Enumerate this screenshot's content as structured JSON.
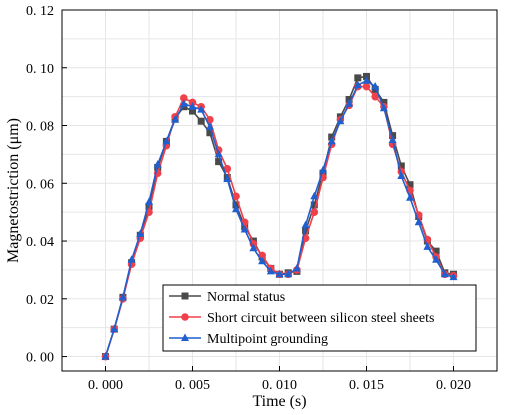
{
  "chart_data": {
    "type": "line",
    "title": "",
    "xlabel": "Time (s)",
    "ylabel": "Magnetostriction (μm)",
    "xlim": [
      -0.0025,
      0.0225
    ],
    "ylim": [
      -0.005,
      0.12
    ],
    "x_ticks": [
      0.0,
      0.005,
      0.01,
      0.015,
      0.02
    ],
    "x_tick_labels": [
      "0. 000",
      "0. 005",
      "0. 010",
      "0. 015",
      "0. 020"
    ],
    "y_ticks": [
      0.0,
      0.02,
      0.04,
      0.06,
      0.08,
      0.1,
      0.12
    ],
    "y_tick_labels": [
      "0. 00",
      "0. 02",
      "0. 04",
      "0. 06",
      "0. 08",
      "0. 10",
      "0. 12"
    ],
    "grid": true,
    "legend_position": "bottom-center",
    "x": [
      0.0,
      0.0005,
      0.001,
      0.0015,
      0.002,
      0.0025,
      0.003,
      0.0035,
      0.004,
      0.0045,
      0.005,
      0.0055,
      0.006,
      0.0065,
      0.007,
      0.0075,
      0.008,
      0.0085,
      0.009,
      0.0095,
      0.01,
      0.0105,
      0.011,
      0.0115,
      0.012,
      0.0125,
      0.013,
      0.0135,
      0.014,
      0.0145,
      0.015,
      0.0155,
      0.016,
      0.0165,
      0.017,
      0.0175,
      0.018,
      0.0185,
      0.019,
      0.0195,
      0.02
    ],
    "series": [
      {
        "name": "Normal status",
        "color": "#4a4a4a",
        "marker": "square",
        "values": [
          0.0,
          0.0095,
          0.0205,
          0.0325,
          0.042,
          0.052,
          0.0655,
          0.0745,
          0.0825,
          0.0865,
          0.085,
          0.0815,
          0.0775,
          0.0675,
          0.062,
          0.0525,
          0.045,
          0.04,
          0.0345,
          0.0305,
          0.0285,
          0.029,
          0.0295,
          0.0435,
          0.0525,
          0.0635,
          0.076,
          0.083,
          0.089,
          0.0965,
          0.097,
          0.0925,
          0.088,
          0.0765,
          0.066,
          0.0595,
          0.0485,
          0.04,
          0.0365,
          0.029,
          0.0285
        ]
      },
      {
        "name": "Short circuit between silicon steel sheets",
        "color": "#f0404a",
        "marker": "circle",
        "values": [
          0.0,
          0.0095,
          0.02,
          0.032,
          0.041,
          0.05,
          0.0635,
          0.073,
          0.083,
          0.0895,
          0.088,
          0.0865,
          0.082,
          0.0715,
          0.065,
          0.0555,
          0.0465,
          0.039,
          0.035,
          0.0305,
          0.0285,
          0.0285,
          0.03,
          0.041,
          0.05,
          0.062,
          0.0735,
          0.082,
          0.087,
          0.0935,
          0.0935,
          0.09,
          0.0865,
          0.0735,
          0.064,
          0.0575,
          0.049,
          0.0405,
          0.0345,
          0.0285,
          0.028
        ]
      },
      {
        "name": "Multipoint grounding",
        "color": "#1f5fd0",
        "marker": "triangle",
        "values": [
          0.0,
          0.0095,
          0.0205,
          0.0335,
          0.0425,
          0.0535,
          0.0665,
          0.0745,
          0.082,
          0.0875,
          0.0865,
          0.0855,
          0.0795,
          0.07,
          0.0615,
          0.051,
          0.044,
          0.0375,
          0.033,
          0.0295,
          0.0285,
          0.0285,
          0.0305,
          0.0455,
          0.0555,
          0.0645,
          0.0745,
          0.0815,
          0.0875,
          0.094,
          0.0955,
          0.0935,
          0.086,
          0.075,
          0.0625,
          0.055,
          0.0465,
          0.038,
          0.0335,
          0.0285,
          0.0275
        ]
      }
    ]
  }
}
